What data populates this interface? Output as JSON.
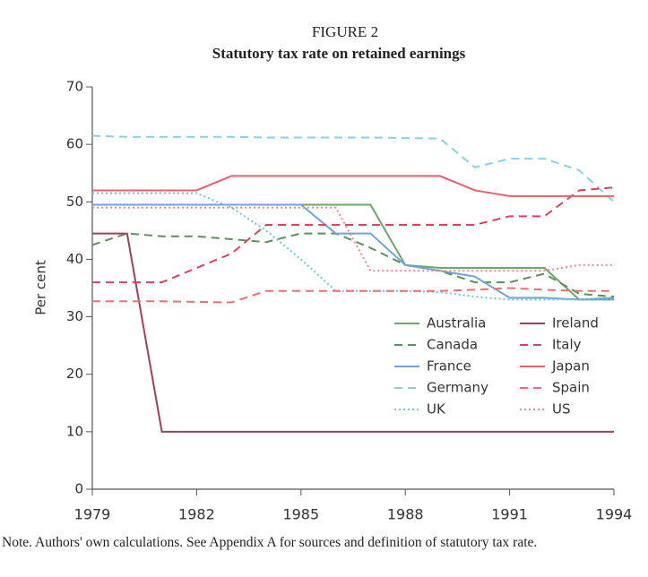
{
  "chart_data": {
    "type": "line",
    "figure_label": "FIGURE 2",
    "title": "Statutory tax rate on retained earnings",
    "y_label": "Per cent",
    "note": "Note. Authors' own calculations. See Appendix A for sources and definition of statutory tax rate.",
    "x": [
      1979,
      1980,
      1981,
      1982,
      1983,
      1984,
      1985,
      1986,
      1987,
      1988,
      1989,
      1990,
      1991,
      1992,
      1993,
      1994
    ],
    "xlim": [
      1979,
      1994
    ],
    "xticks": [
      1979,
      1982,
      1985,
      1988,
      1991,
      1994
    ],
    "ylim": [
      0,
      70
    ],
    "yticks": [
      0,
      10,
      20,
      30,
      40,
      50,
      60,
      70
    ],
    "legend": "lower right",
    "series": [
      {
        "name": "Australia",
        "color": "#6aa86a",
        "dash": "solid",
        "values": [
          49.5,
          49.5,
          49.5,
          49.5,
          49.5,
          49.5,
          49.5,
          49.5,
          49.5,
          39,
          38.5,
          38.5,
          38.5,
          38.5,
          33,
          33
        ]
      },
      {
        "name": "Canada",
        "color": "#5c8f5c",
        "dash": "dashed",
        "values": [
          42.5,
          44.5,
          44,
          44,
          43.5,
          43,
          44.5,
          44.5,
          42,
          39,
          38,
          36,
          36,
          37.5,
          34,
          33.5
        ]
      },
      {
        "name": "France",
        "color": "#6fa3de",
        "dash": "solid",
        "values": [
          49.5,
          49.5,
          49.5,
          49.5,
          49.5,
          49.5,
          49.5,
          44.5,
          44.5,
          39,
          38,
          37,
          33.3,
          33.3,
          33,
          33.3
        ]
      },
      {
        "name": "Germany",
        "color": "#86d2e4",
        "dash": "dashed",
        "values": [
          61.5,
          61.3,
          61.3,
          61.3,
          61.3,
          61.2,
          61.2,
          61.2,
          61.2,
          61.1,
          61,
          56,
          57.5,
          57.5,
          55.5,
          50
        ]
      },
      {
        "name": "UK",
        "color": "#6cc4e6",
        "dash": "dotted",
        "values": [
          51.5,
          51.5,
          51.5,
          51.5,
          49,
          45,
          40,
          34.5,
          34.5,
          34.5,
          34.3,
          33.5,
          33,
          33,
          33,
          33
        ]
      },
      {
        "name": "Ireland",
        "color": "#a0405a",
        "dash": "solid",
        "values": [
          44.5,
          44.5,
          10,
          10,
          10,
          10,
          10,
          10,
          10,
          10,
          10,
          10,
          10,
          10,
          10,
          10
        ]
      },
      {
        "name": "Italy",
        "color": "#d9445a",
        "dash": "dashed",
        "values": [
          36,
          36,
          36,
          38.5,
          41,
          46,
          46,
          46,
          46,
          46,
          46,
          46,
          47.5,
          47.5,
          52,
          52.5
        ]
      },
      {
        "name": "Japan",
        "color": "#e8606a",
        "dash": "solid",
        "values": [
          52,
          52,
          52,
          52,
          54.5,
          54.5,
          54.5,
          54.5,
          54.5,
          54.5,
          54.5,
          52,
          51,
          51,
          51,
          51
        ]
      },
      {
        "name": "Spain",
        "color": "#ec7070",
        "dash": "dashed",
        "values": [
          32.7,
          32.7,
          32.7,
          32.6,
          32.5,
          34.5,
          34.5,
          34.5,
          34.5,
          34.5,
          34.5,
          34.7,
          35,
          34.7,
          34.5,
          34.5
        ]
      },
      {
        "name": "US",
        "color": "#f08a8a",
        "dash": "dotted",
        "values": [
          49,
          49,
          49,
          49,
          49,
          49,
          49,
          49,
          38,
          38,
          38,
          38,
          38,
          38,
          39,
          39
        ]
      }
    ]
  }
}
